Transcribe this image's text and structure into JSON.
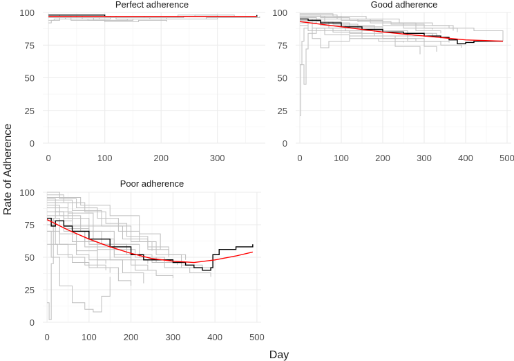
{
  "figure": {
    "xlabel": "Day",
    "ylabel": "Rate of Adherence",
    "colors": {
      "background": "#ffffff",
      "grid_major": "#ebebeb",
      "grid_minor": "#f5f5f5",
      "individual": "#bebebe",
      "observed_mean": "#000000",
      "fitted": "#ff0000",
      "tick_text": "#4d4d4d"
    }
  },
  "chart_data": [
    {
      "type": "line",
      "title": "Perfect adherence",
      "xlim": [
        -10,
        385
      ],
      "ylim": [
        0,
        100
      ],
      "xticks": [
        0,
        100,
        200,
        300
      ],
      "yticks": [
        0,
        25,
        50,
        75,
        100
      ],
      "grid": true,
      "individual_series": [
        {
          "x": [
            0,
            20,
            60,
            120,
            200,
            260,
            330,
            370
          ],
          "y": [
            98,
            97,
            96,
            97,
            97,
            98,
            97,
            98
          ]
        },
        {
          "x": [
            0,
            30,
            90,
            150,
            210,
            280,
            350,
            375
          ],
          "y": [
            96,
            95,
            96,
            96,
            95,
            96,
            96,
            97
          ]
        },
        {
          "x": [
            0,
            10,
            30,
            80,
            150,
            220,
            300,
            360
          ],
          "y": [
            94,
            95,
            96,
            94,
            95,
            95,
            96,
            96
          ]
        },
        {
          "x": [
            0,
            5,
            20,
            60,
            110,
            170,
            230,
            300,
            370
          ],
          "y": [
            92,
            94,
            96,
            95,
            97,
            96,
            98,
            97,
            98
          ]
        },
        {
          "x": [
            0,
            40,
            100,
            160,
            210
          ],
          "y": [
            97,
            94,
            93,
            94,
            93
          ]
        },
        {
          "x": [
            0,
            30,
            70,
            140
          ],
          "y": [
            96,
            95,
            94,
            95
          ]
        },
        {
          "x": [
            0,
            50,
            120,
            180,
            240,
            300
          ],
          "y": [
            97,
            96,
            95,
            96,
            97,
            96
          ]
        }
      ],
      "observed_mean": {
        "x": [
          0,
          100,
          200,
          280,
          340,
          370
        ],
        "y": [
          98,
          97,
          97,
          97,
          97,
          98
        ]
      },
      "fitted": {
        "x": [
          0,
          100,
          200,
          300,
          370
        ],
        "y": [
          97,
          97,
          97,
          97,
          97
        ]
      }
    },
    {
      "type": "line",
      "title": "Good adherence",
      "xlim": [
        -10,
        510
      ],
      "ylim": [
        0,
        100
      ],
      "xticks": [
        0,
        100,
        200,
        300,
        400,
        500
      ],
      "yticks": [
        0,
        25,
        50,
        75,
        100
      ],
      "grid": true,
      "individual_series": [
        {
          "x": [
            0,
            2,
            5,
            10,
            20,
            40,
            80,
            140,
            200,
            260,
            320
          ],
          "y": [
            21,
            60,
            78,
            88,
            92,
            93,
            91,
            88,
            86,
            84,
            82
          ]
        },
        {
          "x": [
            0,
            10,
            15,
            20,
            40,
            60,
            120,
            200,
            280
          ],
          "y": [
            60,
            45,
            72,
            84,
            88,
            86,
            84,
            80,
            78
          ]
        },
        {
          "x": [
            0,
            30,
            50,
            70,
            120,
            200,
            300,
            360
          ],
          "y": [
            95,
            80,
            73,
            78,
            82,
            80,
            78,
            77
          ]
        },
        {
          "x": [
            0,
            50,
            120,
            200,
            280,
            360,
            420,
            490
          ],
          "y": [
            98,
            96,
            94,
            92,
            90,
            88,
            86,
            78
          ]
        },
        {
          "x": [
            0,
            60,
            140,
            220,
            300,
            380
          ],
          "y": [
            97,
            95,
            93,
            91,
            88,
            85
          ]
        },
        {
          "x": [
            0,
            40,
            100,
            180,
            260,
            340
          ],
          "y": [
            96,
            93,
            90,
            86,
            82,
            80
          ]
        },
        {
          "x": [
            0,
            80,
            160,
            240,
            320,
            370
          ],
          "y": [
            99,
            97,
            95,
            92,
            90,
            86
          ]
        },
        {
          "x": [
            0,
            30,
            80,
            150,
            230,
            300,
            330
          ],
          "y": [
            92,
            88,
            85,
            82,
            78,
            74,
            70
          ]
        },
        {
          "x": [
            0,
            50,
            110,
            180,
            260,
            340,
            390
          ],
          "y": [
            94,
            90,
            86,
            82,
            78,
            75,
            73
          ]
        },
        {
          "x": [
            0,
            70,
            150,
            230,
            290
          ],
          "y": [
            93,
            88,
            80,
            74,
            68
          ]
        },
        {
          "x": [
            0,
            100,
            200,
            280,
            340
          ],
          "y": [
            97,
            94,
            90,
            86,
            84
          ]
        },
        {
          "x": [
            0,
            20,
            60,
            120,
            190,
            250
          ],
          "y": [
            90,
            86,
            83,
            80,
            78,
            77
          ]
        },
        {
          "x": [
            0,
            90,
            170,
            250,
            320
          ],
          "y": [
            98,
            95,
            92,
            88,
            87
          ]
        },
        {
          "x": [
            0,
            60,
            120,
            200,
            260,
            330
          ],
          "y": [
            95,
            92,
            89,
            86,
            84,
            82
          ]
        }
      ],
      "observed_mean": {
        "x": [
          0,
          20,
          50,
          100,
          150,
          200,
          250,
          300,
          340,
          360,
          380,
          400,
          420,
          450,
          490
        ],
        "y": [
          95,
          94,
          92,
          89,
          87,
          85,
          84,
          82,
          81,
          79,
          76,
          77,
          78,
          78,
          78
        ]
      },
      "fitted": {
        "x": [
          0,
          100,
          200,
          300,
          400,
          490
        ],
        "y": [
          93,
          89,
          85,
          82,
          79,
          78
        ]
      }
    },
    {
      "type": "line",
      "title": "Poor adherence",
      "xlim": [
        -10,
        510
      ],
      "ylim": [
        0,
        100
      ],
      "xticks": [
        0,
        100,
        200,
        300,
        400,
        500
      ],
      "yticks": [
        0,
        25,
        50,
        75,
        100
      ],
      "grid": true,
      "individual_series": [
        {
          "x": [
            0,
            5,
            10,
            15,
            20,
            40,
            60,
            90,
            120,
            160,
            200,
            240
          ],
          "y": [
            15,
            2,
            45,
            80,
            85,
            80,
            70,
            62,
            56,
            52,
            48,
            45
          ]
        },
        {
          "x": [
            0,
            10,
            30,
            60,
            90,
            110,
            130,
            150
          ],
          "y": [
            70,
            50,
            28,
            15,
            10,
            8,
            20,
            35
          ]
        },
        {
          "x": [
            0,
            30,
            70,
            120,
            170,
            220,
            250
          ],
          "y": [
            100,
            95,
            88,
            80,
            70,
            62,
            55
          ]
        },
        {
          "x": [
            0,
            40,
            90,
            140,
            190,
            240,
            290,
            330
          ],
          "y": [
            98,
            92,
            85,
            76,
            66,
            58,
            52,
            48
          ]
        },
        {
          "x": [
            0,
            20,
            60,
            110,
            160,
            210,
            260,
            310
          ],
          "y": [
            95,
            85,
            74,
            64,
            56,
            50,
            46,
            44
          ]
        },
        {
          "x": [
            0,
            30,
            80,
            130,
            190,
            250,
            320,
            390
          ],
          "y": [
            90,
            82,
            70,
            60,
            52,
            46,
            42,
            40
          ]
        },
        {
          "x": [
            0,
            50,
            100,
            160,
            220,
            280,
            340,
            390
          ],
          "y": [
            88,
            80,
            70,
            60,
            50,
            42,
            38,
            35
          ]
        },
        {
          "x": [
            0,
            40,
            100,
            160,
            200,
            240
          ],
          "y": [
            85,
            72,
            60,
            50,
            44,
            40
          ]
        },
        {
          "x": [
            0,
            30,
            70,
            120,
            170,
            200
          ],
          "y": [
            80,
            68,
            55,
            42,
            32,
            28
          ]
        },
        {
          "x": [
            0,
            60,
            120,
            180,
            230
          ],
          "y": [
            78,
            62,
            48,
            38,
            30
          ]
        },
        {
          "x": [
            0,
            20,
            50,
            90,
            140
          ],
          "y": [
            75,
            60,
            50,
            44,
            40
          ]
        },
        {
          "x": [
            0,
            50,
            110,
            180,
            240,
            290
          ],
          "y": [
            92,
            84,
            74,
            64,
            56,
            50
          ]
        },
        {
          "x": [
            0,
            80,
            150,
            220,
            270
          ],
          "y": [
            96,
            90,
            82,
            68,
            56
          ]
        },
        {
          "x": [
            0,
            30,
            70,
            100,
            140
          ],
          "y": [
            70,
            60,
            52,
            48,
            45
          ]
        },
        {
          "x": [
            0,
            40,
            90,
            150,
            210,
            260,
            300
          ],
          "y": [
            82,
            70,
            58,
            48,
            40,
            36,
            34
          ]
        },
        {
          "x": [
            0,
            60,
            130,
            200,
            260,
            320,
            370
          ],
          "y": [
            94,
            86,
            74,
            62,
            52,
            44,
            40
          ]
        },
        {
          "x": [
            0,
            25,
            60,
            100,
            150
          ],
          "y": [
            60,
            52,
            46,
            42,
            38
          ]
        }
      ],
      "observed_mean": {
        "x": [
          0,
          10,
          20,
          40,
          60,
          100,
          150,
          200,
          230,
          260,
          300,
          330,
          350,
          370,
          390,
          395,
          410,
          450,
          490
        ],
        "y": [
          80,
          74,
          78,
          74,
          70,
          64,
          58,
          52,
          48,
          48,
          46,
          44,
          42,
          40,
          42,
          52,
          56,
          58,
          60
        ]
      },
      "fitted": {
        "x": [
          0,
          50,
          100,
          150,
          200,
          250,
          300,
          350,
          400,
          450,
          490
        ],
        "y": [
          79,
          71,
          64,
          58,
          53,
          49,
          47,
          46,
          48,
          51,
          54
        ]
      }
    }
  ]
}
